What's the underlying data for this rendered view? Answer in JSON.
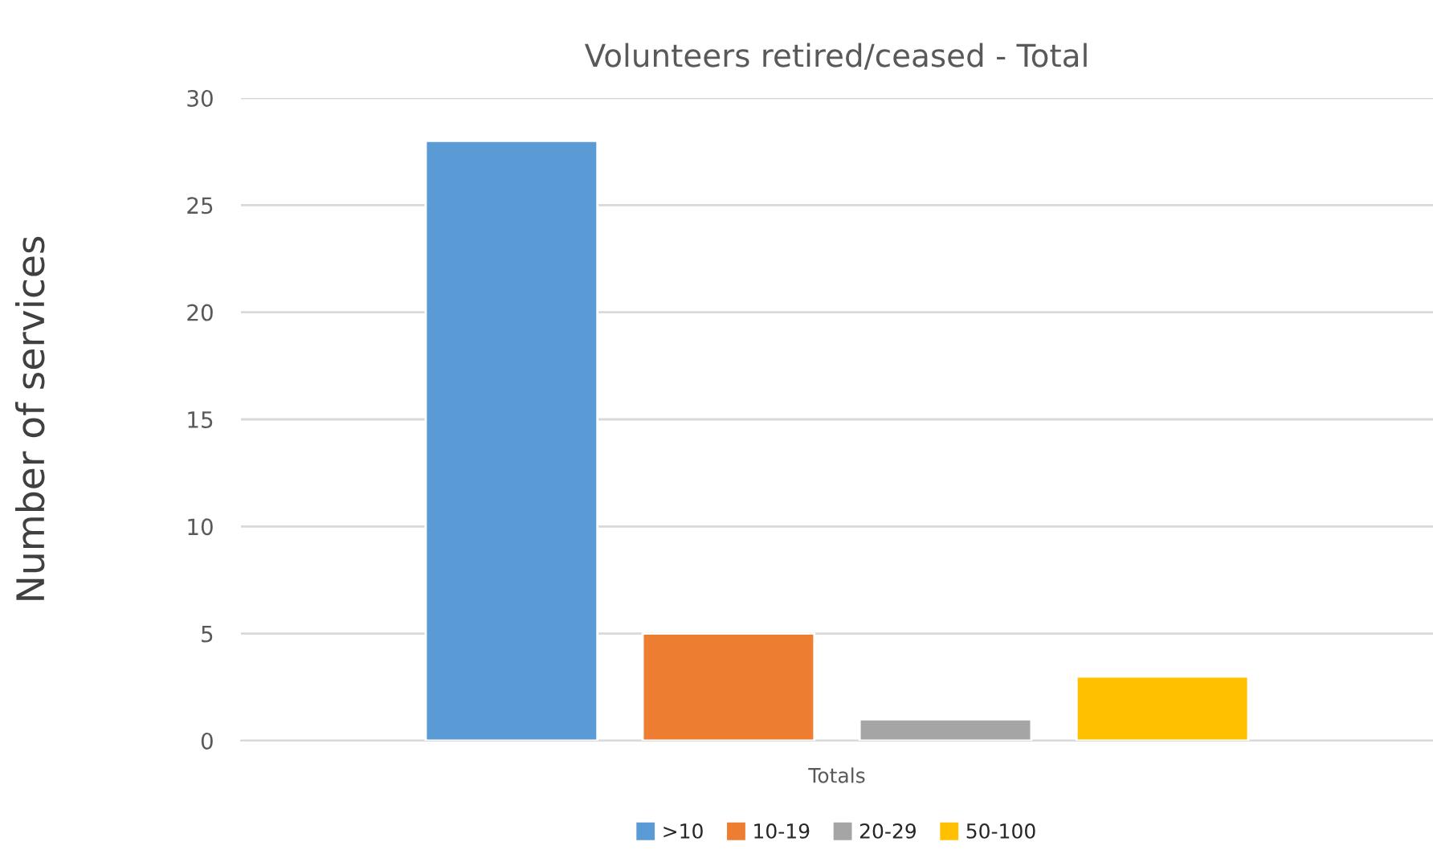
{
  "chart_data": {
    "type": "bar",
    "title": "Volunteers retired/ceased - Total",
    "ylabel": "Number of services",
    "categories": [
      "Totals"
    ],
    "series": [
      {
        "name": ">10",
        "color": "#5b9bd5",
        "values": [
          28
        ]
      },
      {
        "name": "10-19",
        "color": "#ed7d31",
        "values": [
          5
        ]
      },
      {
        "name": "20-29",
        "color": "#a5a5a5",
        "values": [
          1
        ]
      },
      {
        "name": "50-100",
        "color": "#ffc000",
        "values": [
          3
        ]
      }
    ],
    "ylim": [
      0,
      30
    ],
    "yticks": [
      0,
      5,
      10,
      15,
      20,
      25,
      30
    ],
    "grid": "y",
    "legend": "bottom"
  }
}
